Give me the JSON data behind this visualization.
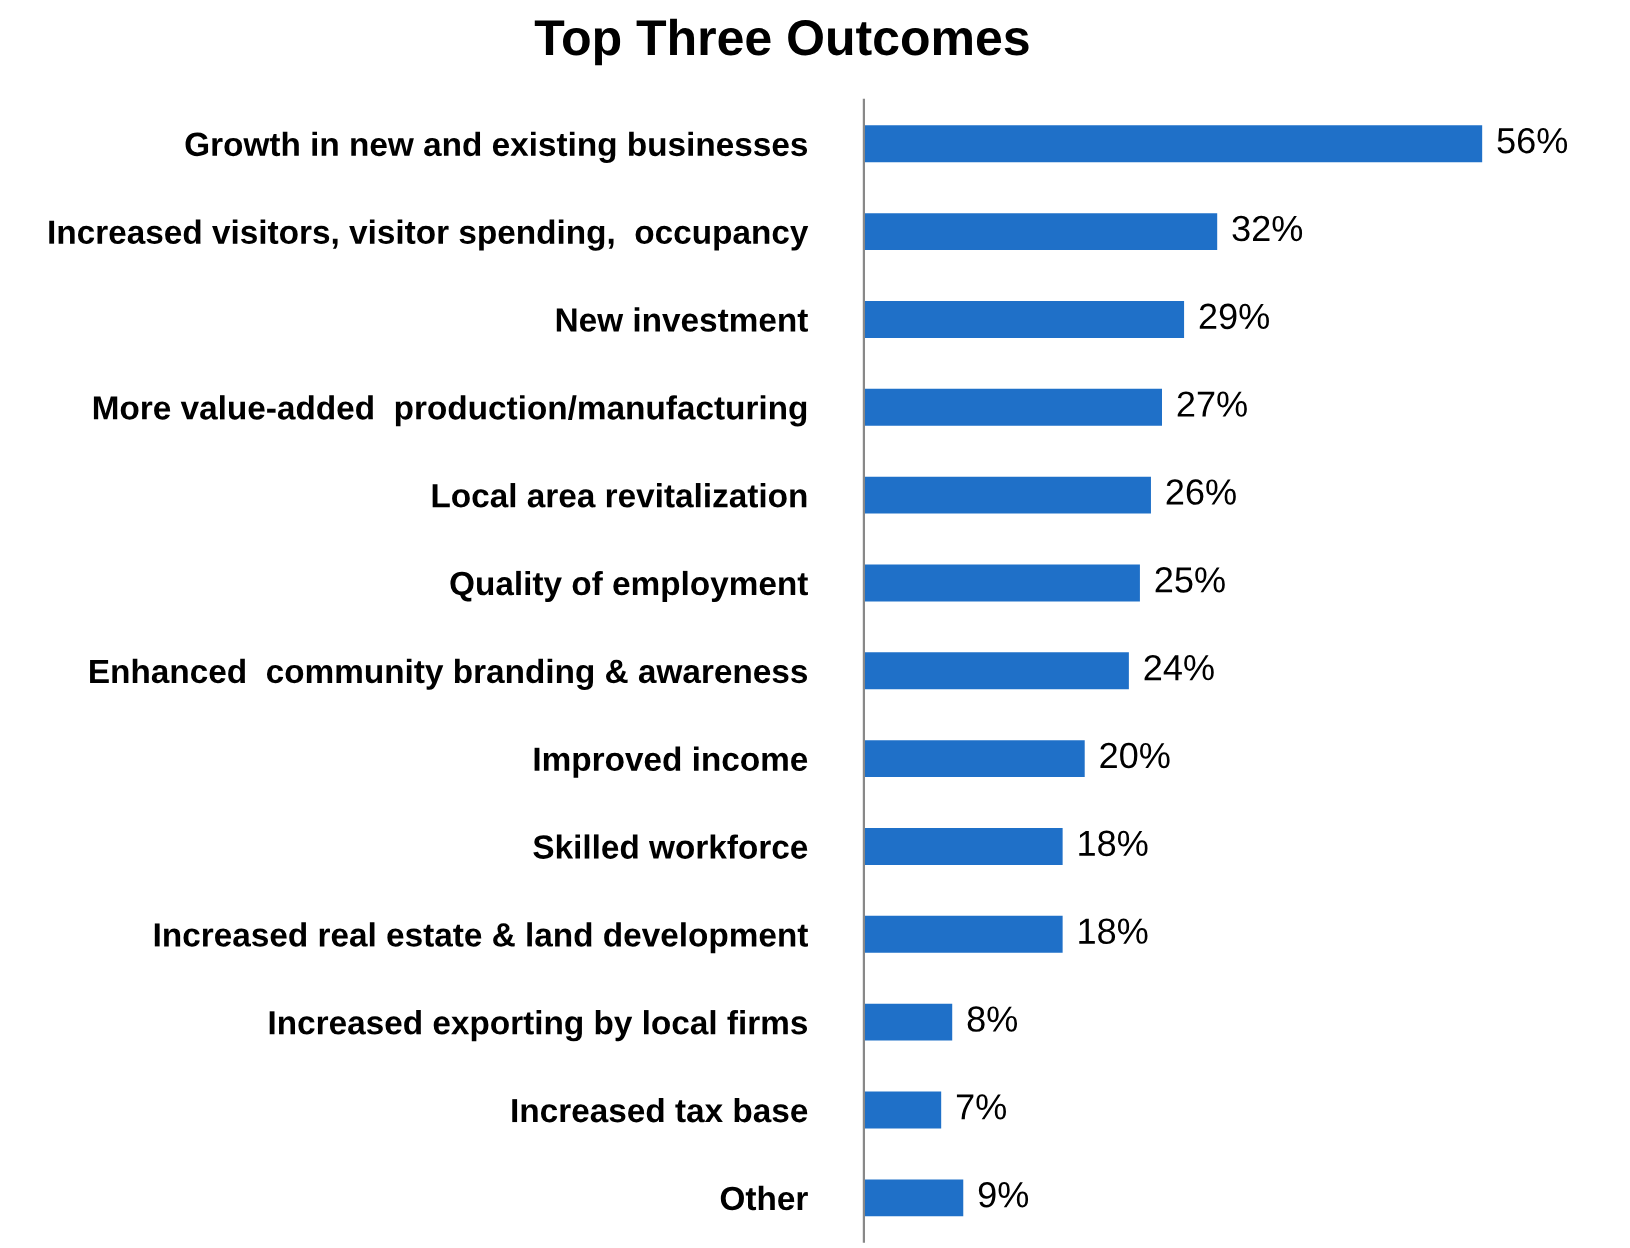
{
  "chart_data": {
    "type": "bar",
    "orientation": "horizontal",
    "title": "Top Three Outcomes",
    "categories": [
      "Growth in new and existing businesses",
      "Increased visitors, visitor spending,  occupancy",
      "New investment",
      "More value-added  production/manufacturing",
      "Local area revitalization",
      "Quality of employment",
      "Enhanced  community branding & awareness",
      "Improved income",
      "Skilled workforce",
      "Increased real estate & land development",
      "Increased exporting by local firms",
      "Increased tax base",
      "Other"
    ],
    "values": [
      56,
      32,
      29,
      27,
      26,
      25,
      24,
      20,
      18,
      18,
      8,
      7,
      9
    ],
    "value_labels": [
      "56%",
      "32%",
      "29%",
      "27%",
      "26%",
      "25%",
      "24%",
      "20%",
      "18%",
      "18%",
      "8%",
      "7%",
      "9%"
    ],
    "color": "#1f70c8",
    "grid": false,
    "legend": false
  }
}
